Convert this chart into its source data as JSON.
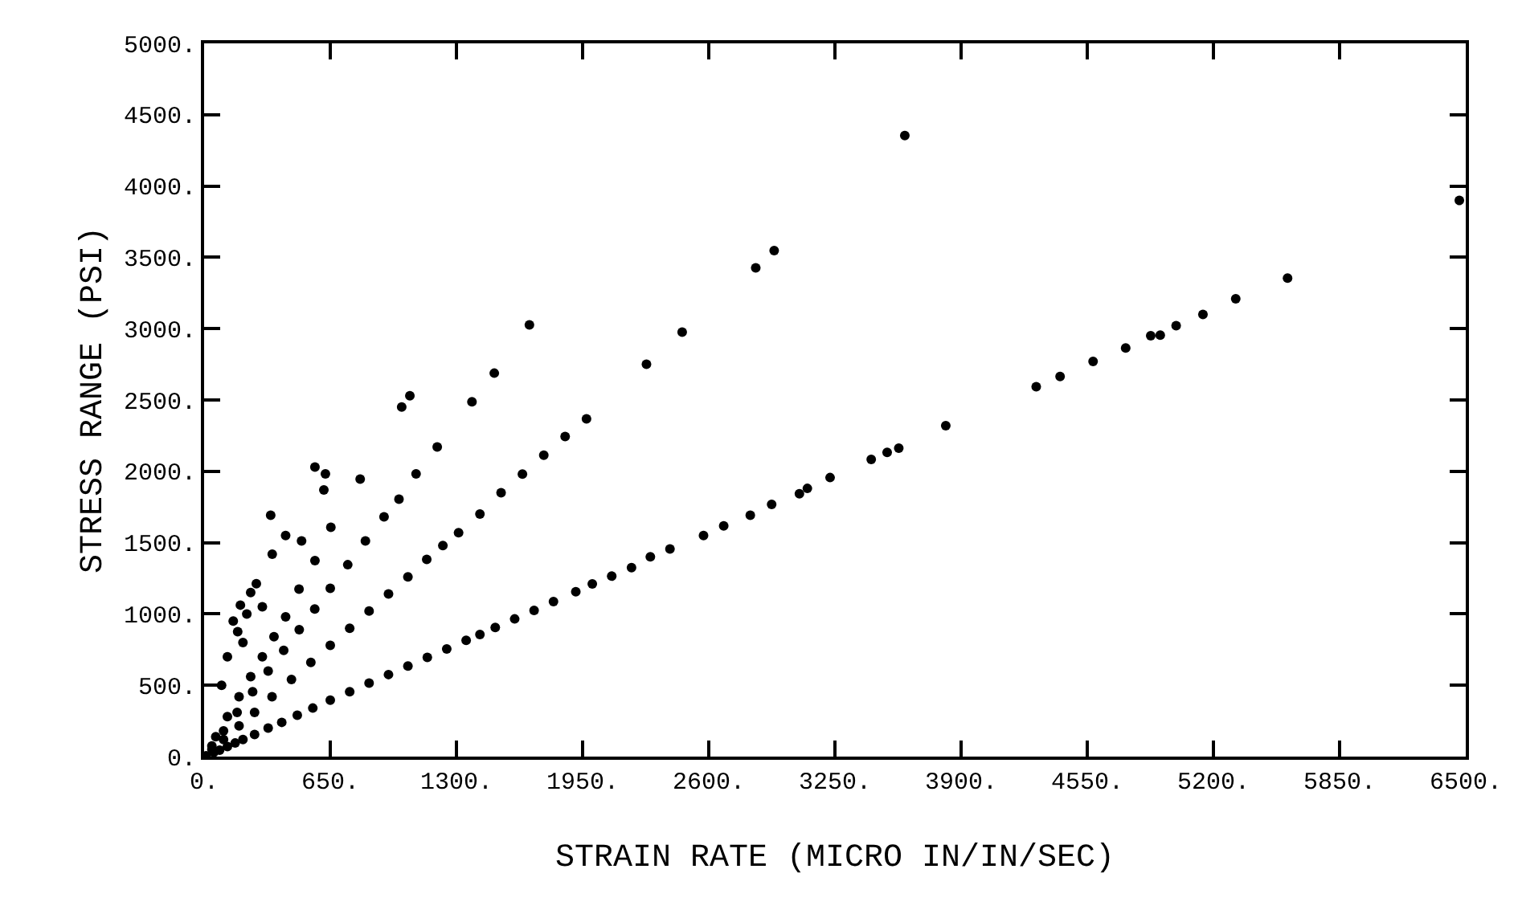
{
  "chart_data": {
    "type": "scatter",
    "xlabel": "STRAIN RATE (MICRO IN/IN/SEC)",
    "ylabel": "STRESS RANGE (PSI)",
    "xlim": [
      0,
      6500
    ],
    "ylim": [
      0,
      5000
    ],
    "xticks": [
      {
        "value": 0,
        "label": "0."
      },
      {
        "value": 650,
        "label": "650."
      },
      {
        "value": 1300,
        "label": "1300."
      },
      {
        "value": 1950,
        "label": "1950."
      },
      {
        "value": 2600,
        "label": "2600."
      },
      {
        "value": 3250,
        "label": "3250."
      },
      {
        "value": 3900,
        "label": "3900."
      },
      {
        "value": 4550,
        "label": "4550."
      },
      {
        "value": 5200,
        "label": "5200."
      },
      {
        "value": 5850,
        "label": "5850."
      },
      {
        "value": 6500,
        "label": "6500."
      }
    ],
    "yticks": [
      {
        "value": 0,
        "label": "0."
      },
      {
        "value": 500,
        "label": "500."
      },
      {
        "value": 1000,
        "label": "1000."
      },
      {
        "value": 1500,
        "label": "1500."
      },
      {
        "value": 2000,
        "label": "2000."
      },
      {
        "value": 2500,
        "label": "2500."
      },
      {
        "value": 3000,
        "label": "3000."
      },
      {
        "value": 3500,
        "label": "3500."
      },
      {
        "value": 4000,
        "label": "4000."
      },
      {
        "value": 4500,
        "label": "4500."
      },
      {
        "value": 5000,
        "label": "5000."
      }
    ],
    "marker": "circle",
    "series": [
      {
        "color": "#000000",
        "x": [
          10,
          50,
          80,
          120,
          160,
          200,
          260,
          330,
          400,
          480,
          560,
          650,
          750,
          850,
          950,
          1050,
          1150,
          1250,
          1350,
          1421,
          1500,
          1600,
          1700,
          1800,
          1915,
          2000,
          2100,
          2202,
          2299,
          2400,
          2573,
          2677,
          2814,
          2924,
          3067,
          3108,
          3225,
          3437,
          3519,
          3579,
          3821,
          4287,
          4410,
          4580,
          4748,
          4877,
          4926,
          5008,
          5146,
          5315,
          5582,
          6467,
          40,
          100,
          180,
          260,
          350,
          450,
          550,
          650,
          750,
          850,
          950,
          1050,
          1147,
          1230,
          1311,
          1421,
          1530,
          1640,
          1750,
          1860,
          1970,
          2279,
          2463,
          2842,
          2937,
          3610,
          40,
          100,
          170,
          250,
          330,
          410,
          490,
          570,
          650,
          740,
          831,
          927,
          1004,
          1092,
          1201,
          1018,
          1060,
          1380,
          1495,
          1676,
          60,
          120,
          180,
          240,
          300,
          360,
          420,
          489,
          571,
          653,
          804,
          625,
          571,
          617,
          343,
          420,
          502,
          351,
          269,
          187,
          173,
          150,
          220,
          240,
          120,
          90,
          200,
          300
        ],
        "values": [
          5,
          30,
          45,
          70,
          95,
          120,
          155,
          200,
          240,
          290,
          340,
          395,
          455,
          515,
          575,
          635,
          695,
          755,
          815,
          856,
          905,
          965,
          1025,
          1087,
          1156,
          1210,
          1265,
          1325,
          1400,
          1455,
          1550,
          1618,
          1692,
          1768,
          1843,
          1880,
          1956,
          2083,
          2132,
          2162,
          2320,
          2593,
          2665,
          2770,
          2864,
          2950,
          2954,
          3021,
          3100,
          3209,
          3355,
          3899,
          50,
          120,
          215,
          310,
          420,
          540,
          660,
          780,
          900,
          1020,
          1140,
          1260,
          1382,
          1480,
          1569,
          1700,
          1850,
          1980,
          2113,
          2244,
          2368,
          2751,
          2976,
          3426,
          3547,
          4354,
          75,
          180,
          310,
          455,
          600,
          745,
          890,
          1035,
          1180,
          1345,
          1512,
          1681,
          1805,
          1982,
          2170,
          2451,
          2530,
          2488,
          2688,
          3026,
          140,
          280,
          420,
          560,
          700,
          840,
          980,
          1174,
          1374,
          1607,
          1945,
          1982,
          2030,
          1869,
          1692,
          1550,
          1512,
          1419,
          1212,
          1062,
          875,
          950,
          1000,
          1150,
          700,
          500,
          800,
          1050
        ]
      }
    ]
  }
}
